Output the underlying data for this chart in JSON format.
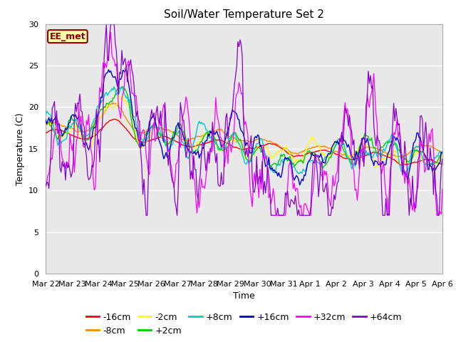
{
  "title": "Soil/Water Temperature Set 2",
  "ylabel": "Temperature (C)",
  "xlabel": "Time",
  "station_label": "EE_met",
  "ylim": [
    0,
    30
  ],
  "yticks": [
    0,
    5,
    10,
    15,
    20,
    25,
    30
  ],
  "xtick_labels": [
    "Mar 22",
    "Mar 23",
    "Mar 24",
    "Mar 25",
    "Mar 26",
    "Mar 27",
    "Mar 28",
    "Mar 29",
    "Mar 30",
    "Mar 31",
    "Apr 1",
    "Apr 2",
    "Apr 3",
    "Apr 4",
    "Apr 5",
    "Apr 6"
  ],
  "series_colors": {
    "-16cm": "#ff0000",
    "-8cm": "#ff8800",
    "-2cm": "#ffff00",
    "+2cm": "#00cc00",
    "+8cm": "#00cccc",
    "+16cm": "#0000cc",
    "+32cm": "#ff00ff",
    "+64cm": "#8800cc"
  },
  "plot_bg": "#e8e8e8",
  "fig_bg": "#ffffff",
  "grid_color": "#ffffff",
  "title_fontsize": 11,
  "label_fontsize": 9,
  "tick_fontsize": 8,
  "legend_fontsize": 9
}
